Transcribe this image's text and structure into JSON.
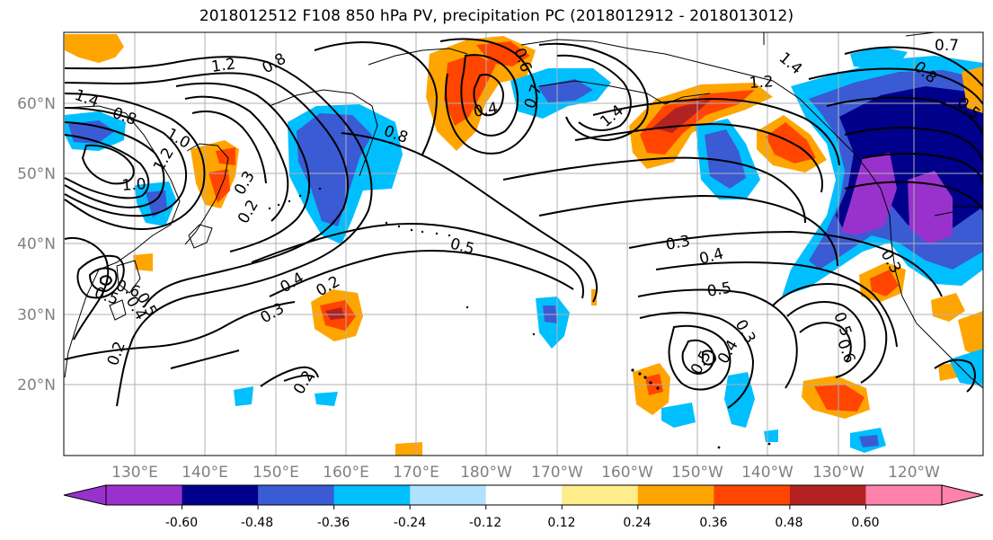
{
  "title": "2018012512 F108 850 hPa PV, precipitation PC (2018012912 - 2018013012)",
  "axes": {
    "lon_labels": [
      "130°E",
      "140°E",
      "150°E",
      "160°E",
      "170°E",
      "180°W",
      "170°W",
      "160°W",
      "150°W",
      "140°W",
      "130°W",
      "120°W"
    ],
    "lat_labels": [
      "60°N",
      "50°N",
      "40°N",
      "30°N",
      "20°N"
    ]
  },
  "colorbar": {
    "ticks": [
      "-0.60",
      "-0.48",
      "-0.36",
      "-0.24",
      "-0.12",
      "0.12",
      "0.24",
      "0.36",
      "0.48",
      "0.60"
    ],
    "colors": [
      "#9932cc",
      "#00008b",
      "#3a5bd4",
      "#00bfff",
      "#b0e2ff",
      "#ffffff",
      "#ffec8b",
      "#ffa500",
      "#ff4500",
      "#b22222",
      "#ff82ab"
    ]
  },
  "contour_labels": [
    "1.2",
    "0.8",
    "1.4",
    "0.8",
    "1.0",
    "1.2",
    "1.0",
    "0.3",
    "0.2",
    "0.6",
    "0.5",
    "0.4",
    "0.7",
    "1.4",
    "0.8",
    "1.2",
    "1.4",
    "0.6",
    "0.8",
    "0.7",
    "0.5",
    "0.4",
    "0.3",
    "0.4",
    "0.2",
    "0.3",
    "0.5",
    "0.3",
    "0.4",
    "0.5",
    "0.3",
    "0.5",
    "0.4",
    "0.5",
    "0.6",
    "0.2",
    "0.2",
    "0.5"
  ]
}
